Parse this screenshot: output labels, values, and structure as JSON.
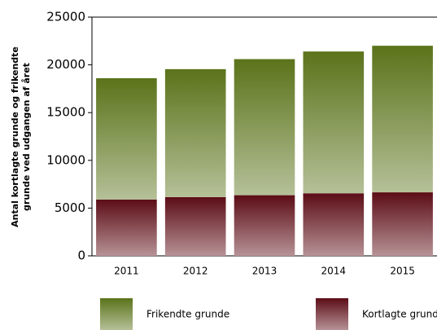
{
  "chart_data": {
    "type": "stacked_bar",
    "ylabel": [
      "Antal kortlagte grunde og frikendte",
      "grunde ved udgangen af året"
    ],
    "categories": [
      "2011",
      "2012",
      "2013",
      "2014",
      "2015"
    ],
    "series": [
      {
        "name": "Kortlagte grunde",
        "color": "#5c0d16",
        "values": [
          5900,
          6150,
          6350,
          6550,
          6650
        ]
      },
      {
        "name": "Frikendte grunde",
        "color": "#5b731a",
        "values": [
          12700,
          13400,
          14250,
          14850,
          15350
        ]
      }
    ],
    "ylim": [
      0,
      25000
    ],
    "yticks": [
      0,
      5000,
      10000,
      15000,
      20000,
      25000
    ],
    "grid": false
  }
}
